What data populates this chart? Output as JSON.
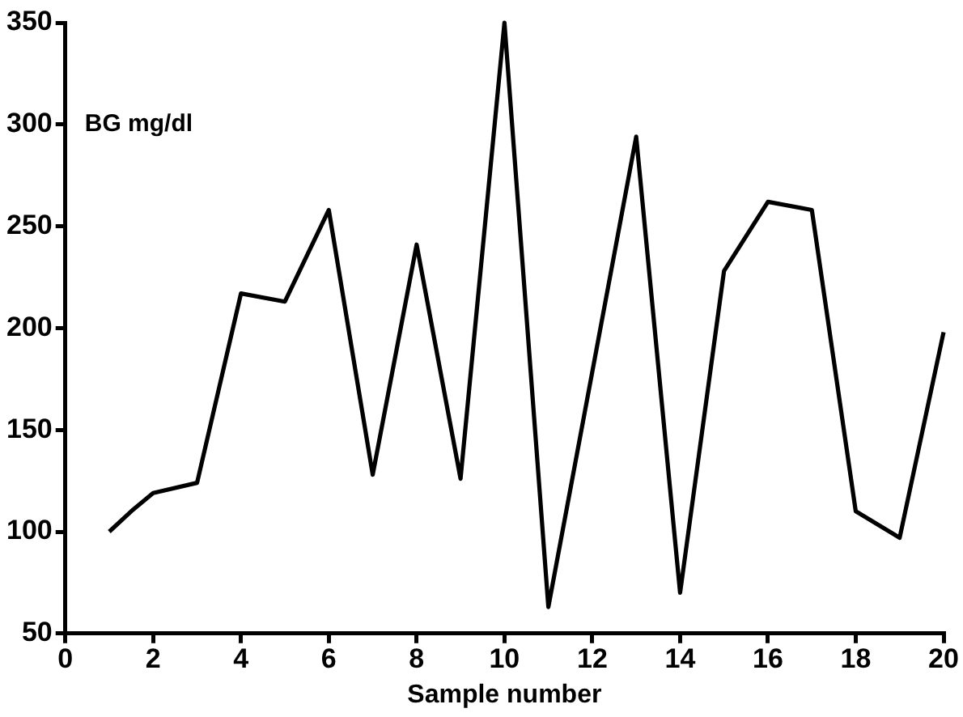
{
  "chart_data": {
    "type": "line",
    "xlabel": "Sample number",
    "ylabel": "BG mg/dl",
    "series": [
      {
        "color": "#000000",
        "x": [
          1,
          1.5,
          2,
          3,
          4,
          5,
          6,
          7,
          8,
          9,
          10,
          11,
          13,
          14,
          15,
          16,
          17,
          18,
          19,
          20
        ],
        "values": [
          100,
          110,
          119,
          124,
          217,
          213,
          258,
          128,
          241,
          126,
          350,
          63,
          294,
          70,
          228,
          262,
          258,
          110,
          97,
          198
        ]
      }
    ],
    "xlim": [
      0,
      20
    ],
    "xticks": [
      0,
      2,
      4,
      6,
      8,
      10,
      12,
      14,
      16,
      18,
      20
    ],
    "ylim": [
      50,
      350
    ],
    "yticks": [
      50,
      100,
      150,
      200,
      250,
      300,
      350
    ],
    "grid": false,
    "legend": false,
    "marker": "none",
    "line_style": "solid"
  }
}
